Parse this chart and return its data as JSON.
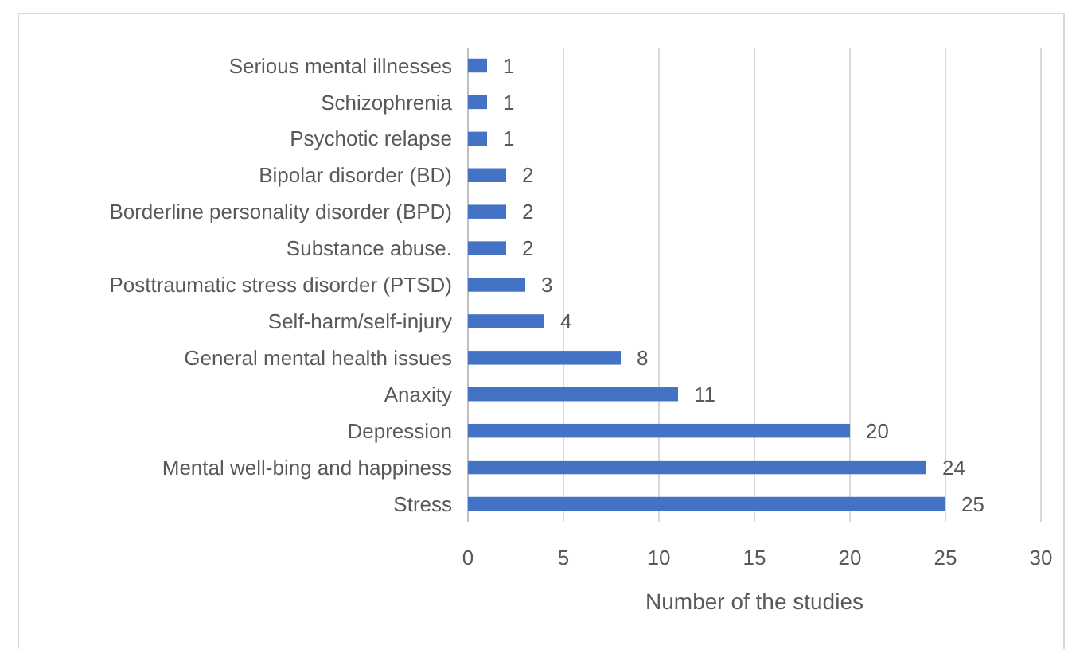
{
  "chart_data": {
    "type": "bar",
    "orientation": "horizontal",
    "categories": [
      "Serious mental illnesses",
      "Schizophrenia",
      "Psychotic relapse",
      "Bipolar disorder (BD)",
      "Borderline personality disorder (BPD)",
      "Substance abuse.",
      "Posttraumatic stress disorder (PTSD)",
      "Self-harm/self-injury",
      "General mental health issues",
      "Anaxity",
      "Depression",
      "Mental well-bing and happiness",
      "Stress"
    ],
    "values": [
      1,
      1,
      1,
      2,
      2,
      2,
      3,
      4,
      8,
      11,
      20,
      24,
      25
    ],
    "color": "#4472c4",
    "xlim": [
      0,
      30
    ],
    "xticks": [
      0,
      5,
      10,
      15,
      20,
      25,
      30
    ],
    "xlabel": "Number of the studies",
    "grid": "x",
    "data_labels": true
  }
}
